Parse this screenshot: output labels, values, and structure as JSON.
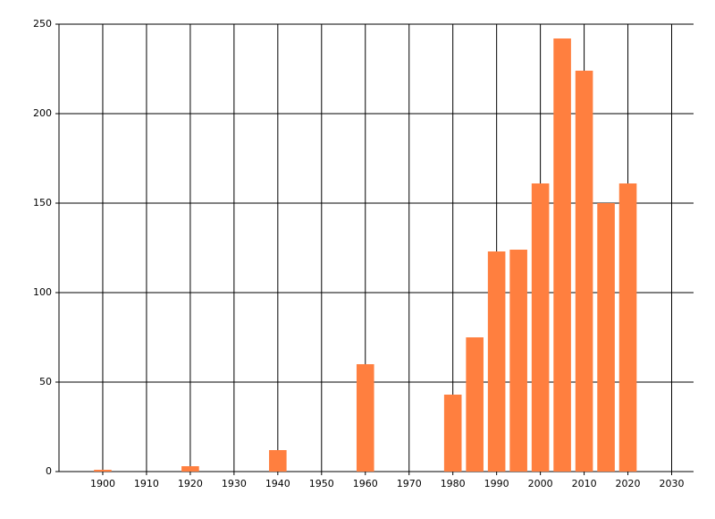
{
  "chart_data": {
    "type": "bar",
    "x": [
      1900,
      1920,
      1940,
      1960,
      1980,
      1985,
      1990,
      1995,
      2000,
      2005,
      2010,
      2015,
      2020
    ],
    "values": [
      1,
      3,
      12,
      60,
      43,
      75,
      123,
      124,
      161,
      242,
      224,
      150,
      161
    ],
    "color": "#ff7f3f",
    "xlim": [
      1890,
      2035
    ],
    "xticks": [
      1900,
      1910,
      1920,
      1930,
      1940,
      1950,
      1960,
      1970,
      1980,
      1990,
      2000,
      2010,
      2020,
      2030
    ],
    "ylim": [
      0,
      250
    ],
    "yticks": [
      0,
      50,
      100,
      150,
      200,
      250
    ],
    "grid": true
  }
}
